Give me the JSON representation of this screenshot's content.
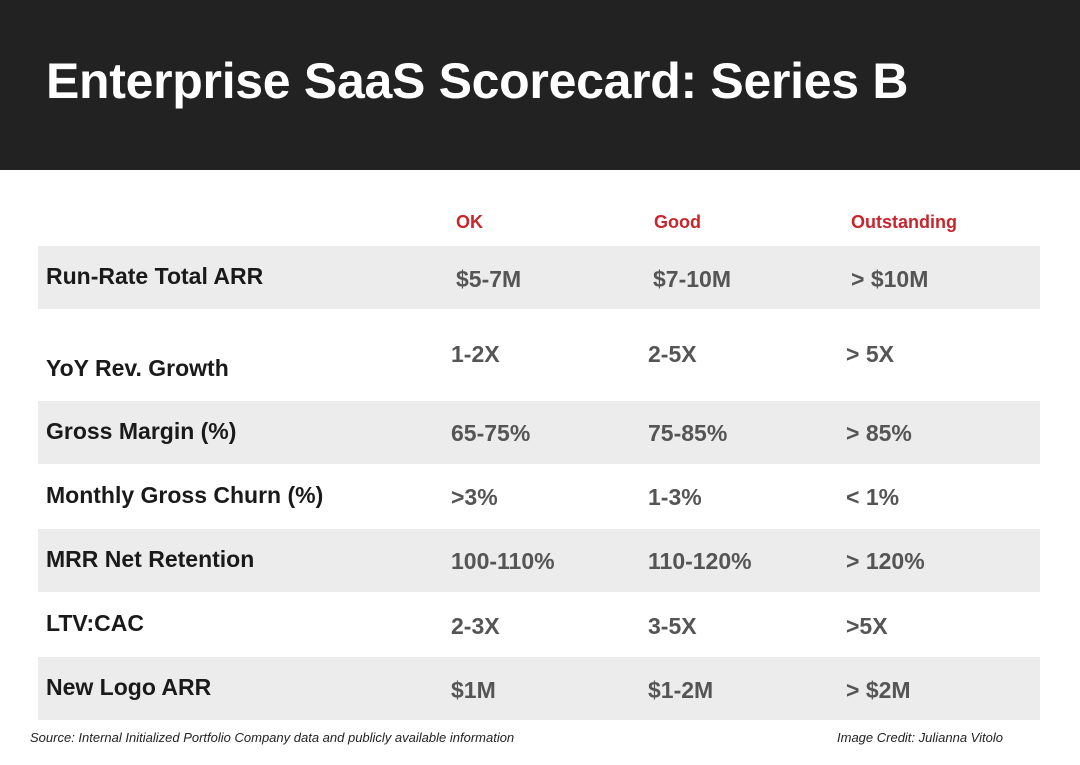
{
  "title": "Enterprise SaaS Scorecard: Series B",
  "columns": {
    "ok": "OK",
    "good": "Good",
    "outstanding": "Outstanding"
  },
  "rows": [
    {
      "metric": "Run-Rate Total ARR",
      "ok": "$5-7M",
      "good": "$7-10M",
      "outstanding": "> $10M"
    },
    {
      "metric": "YoY Rev. Growth",
      "ok": "1-2X",
      "good": "2-5X",
      "outstanding": "> 5X"
    },
    {
      "metric": "Gross Margin (%)",
      "ok": "65-75%",
      "good": "75-85%",
      "outstanding": "> 85%"
    },
    {
      "metric": "Monthly Gross Churn (%)",
      "ok": ">3%",
      "good": "1-3%",
      "outstanding": "< 1%"
    },
    {
      "metric": "MRR Net Retention",
      "ok": "100-110%",
      "good": "110-120%",
      "outstanding": "> 120%"
    },
    {
      "metric": "LTV:CAC",
      "ok": "2-3X",
      "good": "3-5X",
      "outstanding": ">5X"
    },
    {
      "metric": "New Logo ARR",
      "ok": "$1M",
      "good": "$1-2M",
      "outstanding": "> $2M"
    }
  ],
  "footer": {
    "source": "Source: Internal Initialized Portfolio Company data and publicly available information",
    "credit": "Image Credit: Julianna Vitolo"
  }
}
